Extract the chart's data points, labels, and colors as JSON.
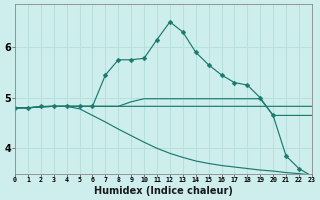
{
  "xlabel": "Humidex (Indice chaleur)",
  "xlim": [
    0,
    23
  ],
  "ylim": [
    3.5,
    6.85
  ],
  "yticks": [
    4,
    5,
    6
  ],
  "background_color": "#ceeeed",
  "line_color": "#1a7a6e",
  "grid_color": "#b8e0dd",
  "series": [
    {
      "x": [
        0,
        1,
        2,
        3,
        4,
        5,
        6,
        7,
        8,
        9,
        10,
        11,
        12,
        13,
        14,
        15,
        16,
        17,
        18,
        19,
        20,
        21,
        22,
        23
      ],
      "y": [
        4.8,
        4.8,
        4.82,
        4.83,
        4.83,
        4.83,
        4.83,
        4.83,
        4.83,
        4.83,
        4.83,
        4.83,
        4.83,
        4.83,
        4.83,
        4.83,
        4.83,
        4.83,
        4.83,
        4.83,
        4.83,
        4.83,
        4.83,
        4.83
      ],
      "marker": false
    },
    {
      "x": [
        0,
        1,
        2,
        3,
        4,
        5,
        6,
        7,
        8,
        9,
        10,
        11,
        12,
        13,
        14,
        15,
        16,
        17,
        18,
        19,
        20,
        21,
        22,
        23
      ],
      "y": [
        4.8,
        4.8,
        4.82,
        4.83,
        4.83,
        4.83,
        4.83,
        4.83,
        4.83,
        4.92,
        4.98,
        4.98,
        4.98,
        4.98,
        4.98,
        4.98,
        4.98,
        4.98,
        4.98,
        4.98,
        4.65,
        4.65,
        4.65,
        4.65
      ],
      "marker": false
    },
    {
      "x": [
        0,
        1,
        2,
        3,
        4,
        5,
        6,
        7,
        8,
        9,
        10,
        11,
        12,
        13,
        14,
        15,
        16,
        17,
        18,
        19,
        20,
        21,
        22,
        23
      ],
      "y": [
        4.8,
        4.8,
        4.82,
        4.83,
        4.83,
        4.78,
        4.65,
        4.52,
        4.38,
        4.25,
        4.12,
        4.0,
        3.9,
        3.82,
        3.75,
        3.7,
        3.66,
        3.63,
        3.6,
        3.57,
        3.55,
        3.52,
        3.5,
        3.47
      ],
      "marker": false
    },
    {
      "x": [
        0,
        1,
        2,
        3,
        4,
        5,
        6,
        7,
        8,
        9,
        10,
        11,
        12,
        13,
        14,
        15,
        16,
        17,
        18,
        19,
        20,
        21,
        22,
        23
      ],
      "y": [
        4.8,
        4.8,
        4.83,
        4.83,
        4.83,
        4.83,
        4.83,
        5.45,
        5.75,
        5.75,
        5.78,
        6.15,
        6.5,
        6.3,
        5.9,
        5.65,
        5.45,
        5.3,
        5.25,
        5.0,
        4.65,
        3.85,
        3.6,
        3.45
      ],
      "marker": true,
      "markersize": 2.5
    }
  ]
}
